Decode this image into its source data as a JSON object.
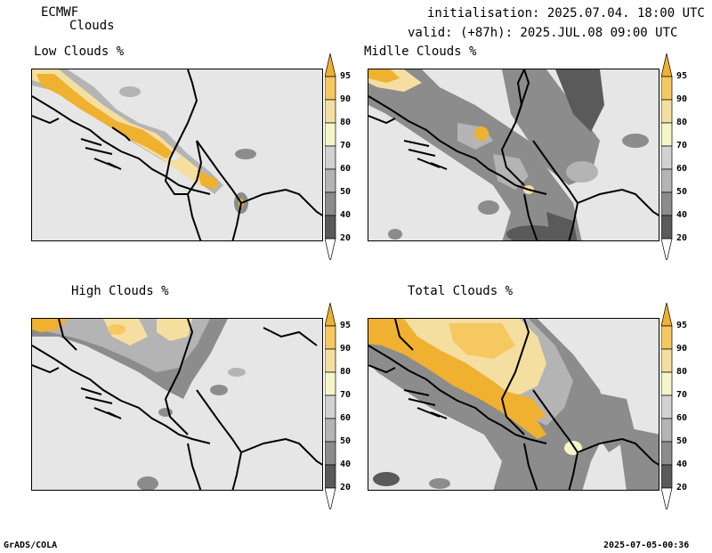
{
  "header": {
    "model": "ECMWF",
    "product": "Clouds",
    "init": "initialisation: 2025.07.04. 18:00 UTC",
    "valid": "valid: (+87h): 2025.JUL.08 09:00 UTC"
  },
  "panels": [
    {
      "title": "Low Clouds %"
    },
    {
      "title": "Midlle Clouds %"
    },
    {
      "title": "High Clouds %"
    },
    {
      "title": "Total Clouds %"
    }
  ],
  "colorbar": {
    "levels": [
      "95",
      "90",
      "80",
      "70",
      "60",
      "50",
      "40",
      "20"
    ],
    "colors": [
      "#f0b030",
      "#f5c860",
      "#f5dfa0",
      "#f5f5c8",
      "#d2d2d2",
      "#b4b4b4",
      "#8c8c8c",
      "#5a5a5a",
      "#ffffff"
    ]
  },
  "footer": {
    "left": "GrADS/COLA",
    "right": "2025-07-05-00:36"
  }
}
